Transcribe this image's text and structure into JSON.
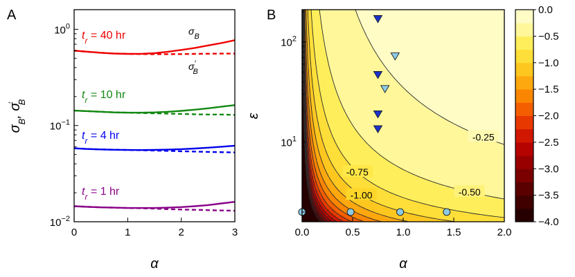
{
  "chart_data": [
    {
      "panel": "A",
      "type": "line",
      "xlabel": "α",
      "ylabel": "σ_B, σ'_B",
      "xlim": [
        0,
        3
      ],
      "ylim": [
        0.01,
        1.6
      ],
      "y_scale": "log",
      "x_ticks": [
        "0",
        "1",
        "2",
        "3"
      ],
      "y_ticks": [
        {
          "base": "10",
          "exp": "0",
          "value": 1
        },
        {
          "base": "10",
          "exp": "−1",
          "value": 0.1
        },
        {
          "base": "10",
          "exp": "−2",
          "value": 0.01
        }
      ],
      "annotations": {
        "solid": "σ_B",
        "dashed": "σ'_B"
      },
      "x": [
        0,
        0.25,
        0.5,
        0.75,
        1.0,
        1.25,
        1.5,
        1.75,
        2.0,
        2.25,
        2.5,
        2.75,
        3.0
      ],
      "series": [
        {
          "name": "t_r = 40 hr",
          "label_t": "t",
          "label_r": "r",
          "label_rest": " = 40 hr",
          "color": "#ee0000",
          "solid": [
            0.6,
            0.585,
            0.57,
            0.56,
            0.555,
            0.556,
            0.565,
            0.585,
            0.61,
            0.64,
            0.68,
            0.72,
            0.77
          ],
          "dashed": [
            0.6,
            0.585,
            0.57,
            0.56,
            0.555,
            0.553,
            0.552,
            0.552,
            0.553,
            0.555,
            0.557,
            0.559,
            0.56
          ]
        },
        {
          "name": "t_r = 10 hr",
          "label_t": "t",
          "label_r": "r",
          "label_rest": " = 10 hr",
          "color": "#118811",
          "solid": [
            0.143,
            0.141,
            0.139,
            0.137,
            0.136,
            0.136,
            0.137,
            0.139,
            0.142,
            0.146,
            0.151,
            0.157,
            0.163
          ],
          "dashed": [
            0.143,
            0.141,
            0.139,
            0.137,
            0.136,
            0.135,
            0.134,
            0.133,
            0.132,
            0.131,
            0.13,
            0.13,
            0.129
          ]
        },
        {
          "name": "t_r = 4 hr",
          "label_t": "t",
          "label_r": "r",
          "label_rest": " = 4 hr",
          "color": "#0000ee",
          "solid": [
            0.058,
            0.057,
            0.0565,
            0.056,
            0.0557,
            0.0556,
            0.0558,
            0.0562,
            0.0568,
            0.0577,
            0.0588,
            0.0602,
            0.0617
          ],
          "dashed": [
            0.058,
            0.057,
            0.0565,
            0.056,
            0.0557,
            0.0553,
            0.055,
            0.0545,
            0.054,
            0.0536,
            0.0532,
            0.0528,
            0.0525
          ]
        },
        {
          "name": "t_r = 1 hr",
          "label_t": "t",
          "label_r": "r",
          "label_rest": " = 1 hr",
          "color": "#880088",
          "solid": [
            0.0145,
            0.0143,
            0.0141,
            0.014,
            0.0139,
            0.0139,
            0.0139,
            0.014,
            0.0142,
            0.0145,
            0.0149,
            0.0155,
            0.0161
          ],
          "dashed": [
            0.0145,
            0.0143,
            0.0141,
            0.014,
            0.0139,
            0.0138,
            0.0137,
            0.0135,
            0.0134,
            0.0133,
            0.0132,
            0.0131,
            0.013
          ]
        }
      ]
    },
    {
      "panel": "B",
      "type": "heatmap",
      "xlabel": "α",
      "ylabel": "ε",
      "xlim": [
        0,
        2
      ],
      "ylim": [
        1.6,
        210
      ],
      "y_scale": "log",
      "x_ticks": [
        "0.0",
        "0.5",
        "1.0",
        "1.5",
        "2.0"
      ],
      "y_ticks": [
        {
          "base": "10",
          "exp": "1",
          "value": 10
        },
        {
          "base": "10",
          "exp": "2",
          "value": 100
        }
      ],
      "colorbar": {
        "min": -4.0,
        "max": 0.0,
        "ticks": [
          "0.0",
          "−0.5",
          "−1.0",
          "−1.5",
          "−2.0",
          "−2.5",
          "−3.0",
          "−3.5",
          "−4.0"
        ],
        "colors": [
          "#1a0000",
          "#3b0000",
          "#5e0000",
          "#8a0000",
          "#b00000",
          "#d71a00",
          "#f04a00",
          "#fb8000",
          "#fdae10",
          "#fed62a",
          "#feec50",
          "#fff8a5",
          "#ffffd9"
        ]
      },
      "contour_labels": [
        {
          "text": "-0.25",
          "level": -0.25
        },
        {
          "text": "-0.50",
          "level": -0.5
        },
        {
          "text": "-0.75",
          "level": -0.75
        },
        {
          "text": "-1.00",
          "level": -1.0
        }
      ],
      "markers": [
        {
          "x": 0.75,
          "y": 170,
          "shape": "triangle-down",
          "color": "#1a33cc"
        },
        {
          "x": 0.75,
          "y": 47,
          "shape": "triangle-down",
          "color": "#1a33cc"
        },
        {
          "x": 0.75,
          "y": 19,
          "shape": "triangle-down",
          "color": "#1a33cc"
        },
        {
          "x": 0.75,
          "y": 13.5,
          "shape": "triangle-down",
          "color": "#1a33cc"
        },
        {
          "x": 0.92,
          "y": 72,
          "shape": "triangle-down",
          "color": "#8ccbe6"
        },
        {
          "x": 0.82,
          "y": 34,
          "shape": "triangle-down",
          "color": "#8ccbe6"
        },
        {
          "x": 0.0,
          "y": 2,
          "shape": "circle",
          "color": "#8ccbe6"
        },
        {
          "x": 0.48,
          "y": 2,
          "shape": "circle",
          "color": "#8ccbe6"
        },
        {
          "x": 0.97,
          "y": 2,
          "shape": "circle",
          "color": "#8ccbe6"
        },
        {
          "x": 1.43,
          "y": 2,
          "shape": "circle",
          "color": "#8ccbe6"
        }
      ]
    }
  ],
  "panel_letters": {
    "a": "A",
    "b": "B"
  }
}
